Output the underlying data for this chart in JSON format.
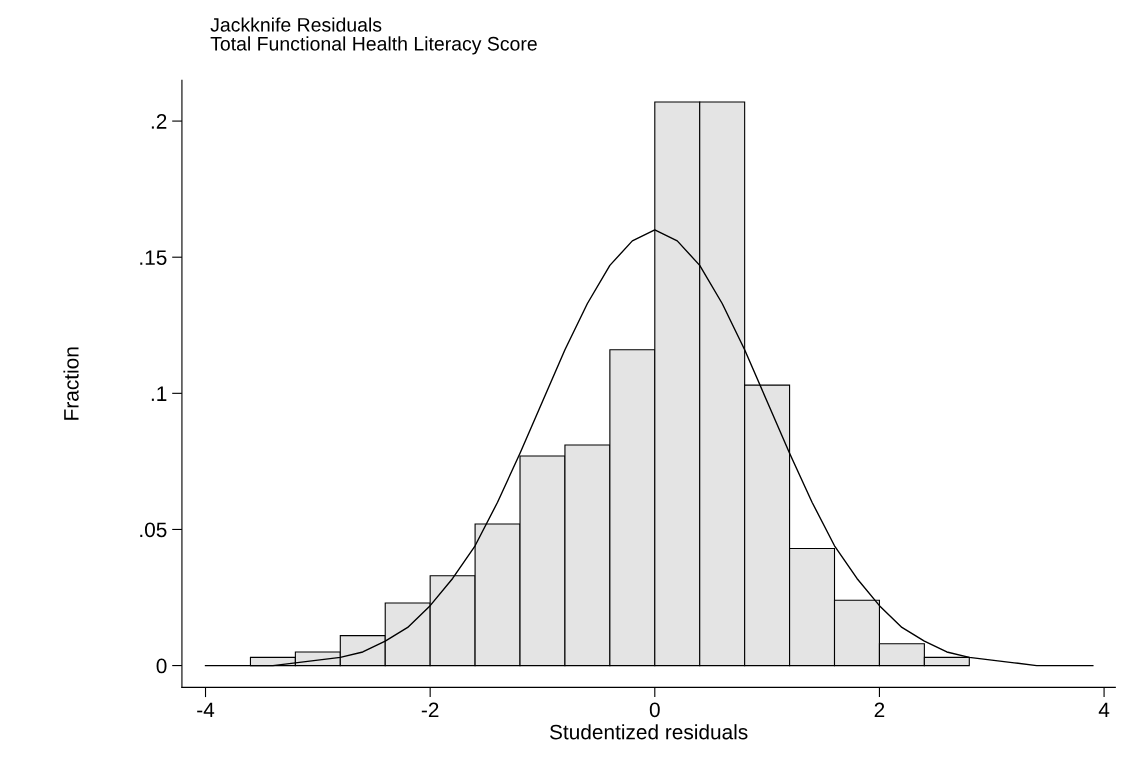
{
  "chart_data": {
    "type": "histogram",
    "title": "Jackknife Residuals",
    "subtitle": "Total Functional Health Literacy Score",
    "xlabel": "Studentized residuals",
    "ylabel": "Fraction",
    "bins": [
      -3.6,
      -3.2,
      -2.8,
      -2.4,
      -2.0,
      -1.6,
      -1.2,
      -0.8,
      -0.4,
      0.0,
      0.4,
      0.8,
      1.2,
      1.6,
      2.0,
      2.4,
      2.8
    ],
    "values": [
      0.003,
      0.005,
      0.011,
      0.023,
      0.033,
      0.052,
      0.077,
      0.081,
      0.116,
      0.207,
      0.207,
      0.103,
      0.043,
      0.024,
      0.008,
      0.003
    ],
    "color": "#e4e4e4",
    "series": [
      {
        "type": "line",
        "color": "#000000",
        "x": [
          -4.0,
          -3.6,
          -3.4,
          -3.2,
          -3.0,
          -2.8,
          -2.6,
          -2.4,
          -2.2,
          -2.0,
          -1.8,
          -1.6,
          -1.4,
          -1.2,
          -1.0,
          -0.8,
          -0.6,
          -0.4,
          -0.2,
          0.0,
          0.2,
          0.4,
          0.6,
          0.8,
          1.0,
          1.2,
          1.4,
          1.6,
          1.8,
          2.0,
          2.2,
          2.4,
          2.6,
          2.8,
          3.0,
          3.2,
          3.4,
          3.6,
          3.9
        ],
        "values": [
          0.0,
          0.0,
          0.0,
          0.001,
          0.002,
          0.003,
          0.005,
          0.009,
          0.014,
          0.022,
          0.032,
          0.044,
          0.06,
          0.078,
          0.097,
          0.116,
          0.133,
          0.147,
          0.156,
          0.16,
          0.156,
          0.147,
          0.133,
          0.116,
          0.097,
          0.078,
          0.06,
          0.044,
          0.032,
          0.022,
          0.014,
          0.009,
          0.005,
          0.003,
          0.002,
          0.001,
          0.0,
          0.0,
          0.0
        ]
      }
    ],
    "xlim": [
      -4.21,
      4.1
    ],
    "ylim": [
      -0.008,
      0.215
    ],
    "xticks": [
      -4,
      -2,
      0,
      2,
      4
    ],
    "yticks": [
      0,
      {
        "value": 0.05,
        "label": ".05"
      },
      {
        "value": 0.1,
        "label": ".1"
      },
      {
        "value": 0.15,
        "label": ".15"
      },
      {
        "value": 0.2,
        "label": ".2"
      }
    ],
    "grid": false,
    "legend": false
  }
}
